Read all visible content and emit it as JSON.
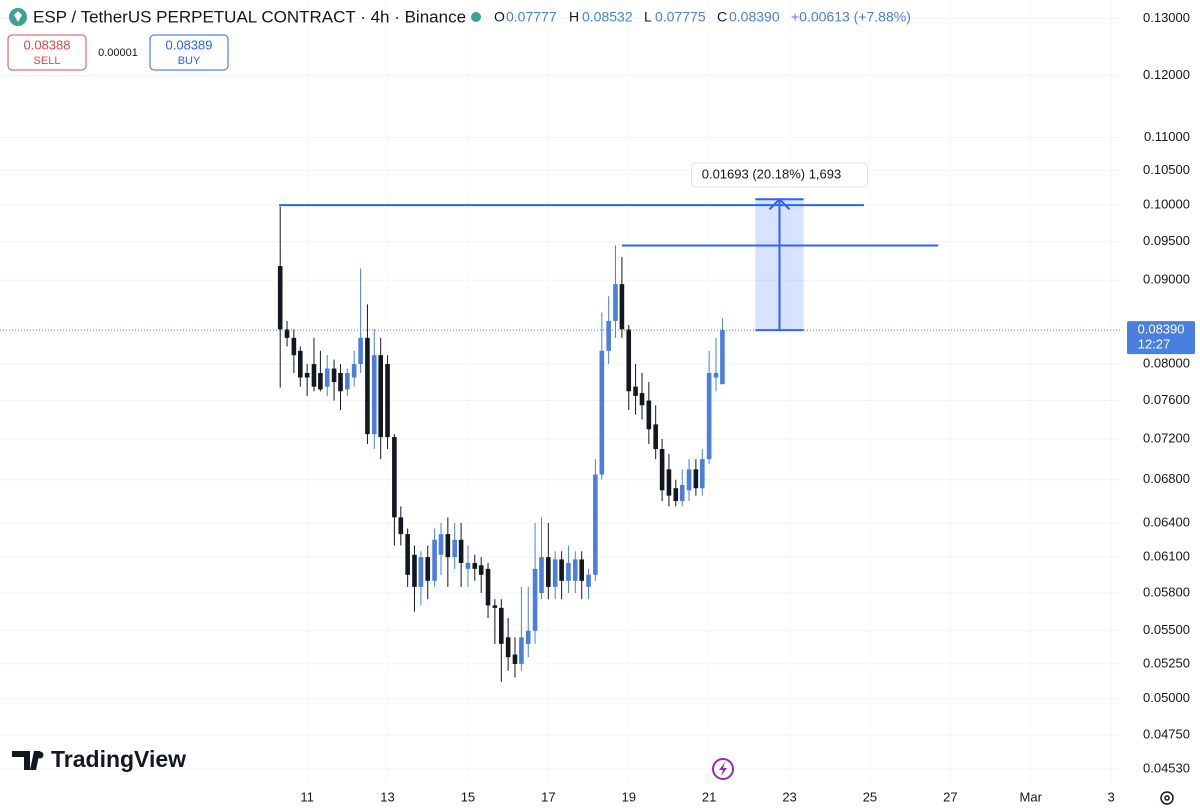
{
  "header": {
    "symbol": "ESP / TetherUS PERPETUAL CONTRACT · 4h · Binance",
    "o_label": "O",
    "o": "0.07777",
    "h_label": "H",
    "h": "0.08532",
    "l_label": "L",
    "l": "0.07775",
    "c_label": "C",
    "c": "0.08390",
    "change": "+0.00613 (+7.88%)",
    "sell_price": "0.08388",
    "sell": "SELL",
    "spread": "0.00001",
    "buy_price": "0.08389",
    "buy": "BUY",
    "brand": "TradingView"
  },
  "chart_data": {
    "type": "candlestick",
    "log_scale": true,
    "grid": true,
    "up_color": "#4a7fe0",
    "down_color": "#131722",
    "x": [
      10.33,
      10.5,
      10.67,
      10.83,
      11,
      11.17,
      11.33,
      11.5,
      11.67,
      11.83,
      12,
      12.17,
      12.33,
      12.5,
      12.67,
      12.83,
      13,
      13.17,
      13.33,
      13.5,
      13.67,
      13.83,
      14,
      14.17,
      14.33,
      14.5,
      14.67,
      14.83,
      15,
      15.17,
      15.33,
      15.5,
      15.67,
      15.83,
      16,
      16.17,
      16.33,
      16.5,
      16.67,
      16.83,
      17,
      17.17,
      17.33,
      17.5,
      17.67,
      17.83,
      18,
      18.17,
      18.33,
      18.5,
      18.67,
      18.83,
      19,
      19.17,
      19.33,
      19.5,
      19.67,
      19.83,
      20,
      20.17,
      20.33,
      20.5,
      20.67,
      20.83,
      21,
      21.17,
      21.33
    ],
    "open": [
      0.0918,
      0.084,
      0.083,
      0.0815,
      0.079,
      0.08,
      0.079,
      0.0775,
      0.0795,
      0.079,
      0.0772,
      0.0785,
      0.08,
      0.083,
      0.0725,
      0.081,
      0.08,
      0.0722,
      0.0645,
      0.063,
      0.0612,
      0.0585,
      0.061,
      0.059,
      0.0612,
      0.063,
      0.061,
      0.0625,
      0.06,
      0.0605,
      0.0603,
      0.06,
      0.057,
      0.0568,
      0.0545,
      0.0532,
      0.0525,
      0.054,
      0.055,
      0.058,
      0.061,
      0.0585,
      0.0608,
      0.059,
      0.059,
      0.0608,
      0.0585,
      0.0595,
      0.0685,
      0.0815,
      0.085,
      0.0895,
      0.084,
      0.0775,
      0.0768,
      0.076,
      0.0735,
      0.071,
      0.069,
      0.0672,
      0.066,
      0.067,
      0.069,
      0.0672,
      0.07,
      0.0785,
      0.07777
    ],
    "high": [
      0.0998,
      0.085,
      0.084,
      0.082,
      0.08,
      0.083,
      0.0815,
      0.081,
      0.0805,
      0.08,
      0.0795,
      0.0815,
      0.0915,
      0.087,
      0.084,
      0.083,
      0.081,
      0.0725,
      0.0655,
      0.0635,
      0.062,
      0.0615,
      0.062,
      0.0635,
      0.064,
      0.0645,
      0.064,
      0.064,
      0.062,
      0.0612,
      0.061,
      0.0605,
      0.0575,
      0.0575,
      0.056,
      0.0545,
      0.0585,
      0.0585,
      0.064,
      0.0645,
      0.064,
      0.0615,
      0.0615,
      0.062,
      0.0615,
      0.0615,
      0.06,
      0.07,
      0.086,
      0.088,
      0.0945,
      0.093,
      0.0845,
      0.08,
      0.079,
      0.078,
      0.0755,
      0.072,
      0.0705,
      0.068,
      0.069,
      0.07,
      0.07,
      0.071,
      0.0815,
      0.083,
      0.08532
    ],
    "low": [
      0.0774,
      0.082,
      0.079,
      0.0775,
      0.0765,
      0.077,
      0.077,
      0.0765,
      0.076,
      0.075,
      0.0765,
      0.0775,
      0.079,
      0.0715,
      0.071,
      0.07,
      0.071,
      0.062,
      0.062,
      0.0585,
      0.0565,
      0.057,
      0.0575,
      0.0585,
      0.0595,
      0.0585,
      0.06,
      0.0585,
      0.0585,
      0.059,
      0.058,
      0.056,
      0.054,
      0.0512,
      0.052,
      0.0515,
      0.052,
      0.053,
      0.054,
      0.0575,
      0.0575,
      0.0575,
      0.0575,
      0.058,
      0.058,
      0.0575,
      0.0575,
      0.059,
      0.068,
      0.08,
      0.083,
      0.083,
      0.075,
      0.0745,
      0.074,
      0.0715,
      0.07,
      0.066,
      0.0655,
      0.0655,
      0.0655,
      0.066,
      0.0665,
      0.0665,
      0.0695,
      0.077,
      0.07775
    ],
    "close": [
      0.084,
      0.083,
      0.081,
      0.0785,
      0.0785,
      0.0775,
      0.0772,
      0.0795,
      0.078,
      0.077,
      0.079,
      0.08,
      0.083,
      0.0725,
      0.081,
      0.0722,
      0.0722,
      0.0645,
      0.063,
      0.0595,
      0.0585,
      0.061,
      0.059,
      0.0625,
      0.063,
      0.061,
      0.0625,
      0.0605,
      0.0605,
      0.06,
      0.0595,
      0.057,
      0.0568,
      0.054,
      0.053,
      0.0525,
      0.0545,
      0.055,
      0.06,
      0.061,
      0.0585,
      0.0608,
      0.059,
      0.0605,
      0.0608,
      0.059,
      0.0595,
      0.0685,
      0.0815,
      0.085,
      0.0895,
      0.084,
      0.077,
      0.0765,
      0.0755,
      0.073,
      0.071,
      0.067,
      0.0665,
      0.066,
      0.0675,
      0.069,
      0.0672,
      0.07,
      0.079,
      0.079,
      0.0839
    ],
    "xlim": [
      3.36,
      31.22
    ],
    "ylim": [
      0.04429,
      0.1334
    ],
    "xticks": [
      11,
      13,
      15,
      17,
      19,
      21,
      23,
      25,
      27,
      {
        "value": 29,
        "label": "Mar"
      },
      {
        "value": 31,
        "label": "3"
      }
    ],
    "yticks": [
      {
        "value": 0.13,
        "label": "0.13000"
      },
      {
        "value": 0.12,
        "label": "0.12000"
      },
      {
        "value": 0.11,
        "label": "0.11000"
      },
      {
        "value": 0.105,
        "label": "0.10500"
      },
      {
        "value": 0.1,
        "label": "0.10000"
      },
      {
        "value": 0.095,
        "label": "0.09500"
      },
      {
        "value": 0.09,
        "label": "0.09000"
      },
      {
        "value": 0.08,
        "label": "0.08000"
      },
      {
        "value": 0.076,
        "label": "0.07600"
      },
      {
        "value": 0.072,
        "label": "0.07200"
      },
      {
        "value": 0.068,
        "label": "0.06800"
      },
      {
        "value": 0.064,
        "label": "0.06400"
      },
      {
        "value": 0.061,
        "label": "0.06100"
      },
      {
        "value": 0.058,
        "label": "0.05800"
      },
      {
        "value": 0.055,
        "label": "0.05500"
      },
      {
        "value": 0.0525,
        "label": "0.05250"
      },
      {
        "value": 0.05,
        "label": "0.05000"
      },
      {
        "value": 0.0475,
        "label": "0.04750"
      },
      {
        "value": 0.0453,
        "label": "0.04530"
      }
    ],
    "lines": [
      {
        "from": 10.3,
        "to": 24.85,
        "value": 0.1,
        "color": "#2962ff"
      },
      {
        "from": 18.83,
        "to": 26.7,
        "value": 0.0945,
        "color": "#2962ff"
      }
    ],
    "measure": {
      "from": 22.15,
      "to": 23.35,
      "low": 0.0839,
      "high": 0.10083,
      "label": "0.01693 (20.18%) 1,693"
    },
    "price_label": "0.08390",
    "countdown": "12:27"
  }
}
